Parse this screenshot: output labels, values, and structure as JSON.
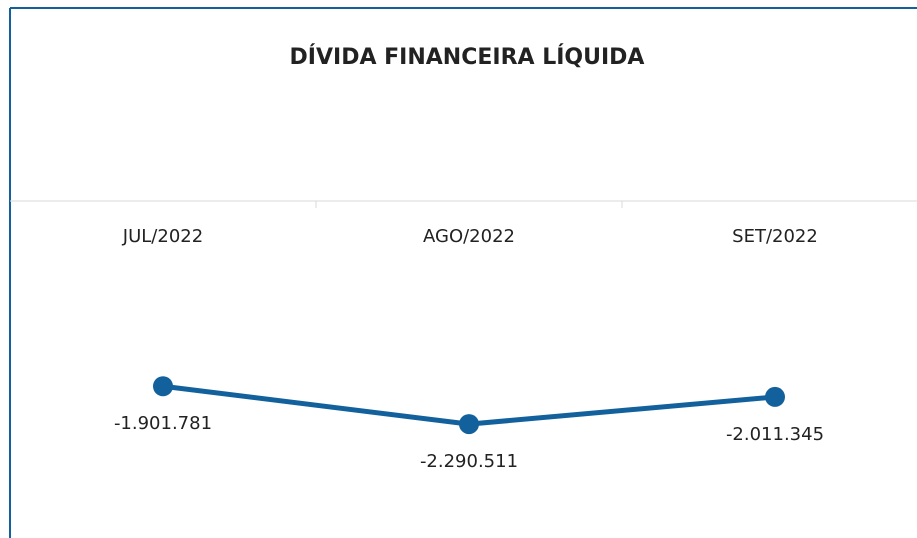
{
  "chart_data": {
    "type": "line",
    "title": "DÍVIDA FINANCEIRA LÍQUIDA",
    "categories": [
      "JUL/2022",
      "AGO/2022",
      "SET/2022"
    ],
    "series": [
      {
        "name": null,
        "color": "#13619c",
        "values": [
          -1901781,
          -2290511,
          -2011345
        ],
        "value_labels": [
          "-1.901.781",
          "-2.290.511",
          "-2.011.345"
        ]
      }
    ],
    "ylim": [
      -2700000,
      0
    ]
  }
}
